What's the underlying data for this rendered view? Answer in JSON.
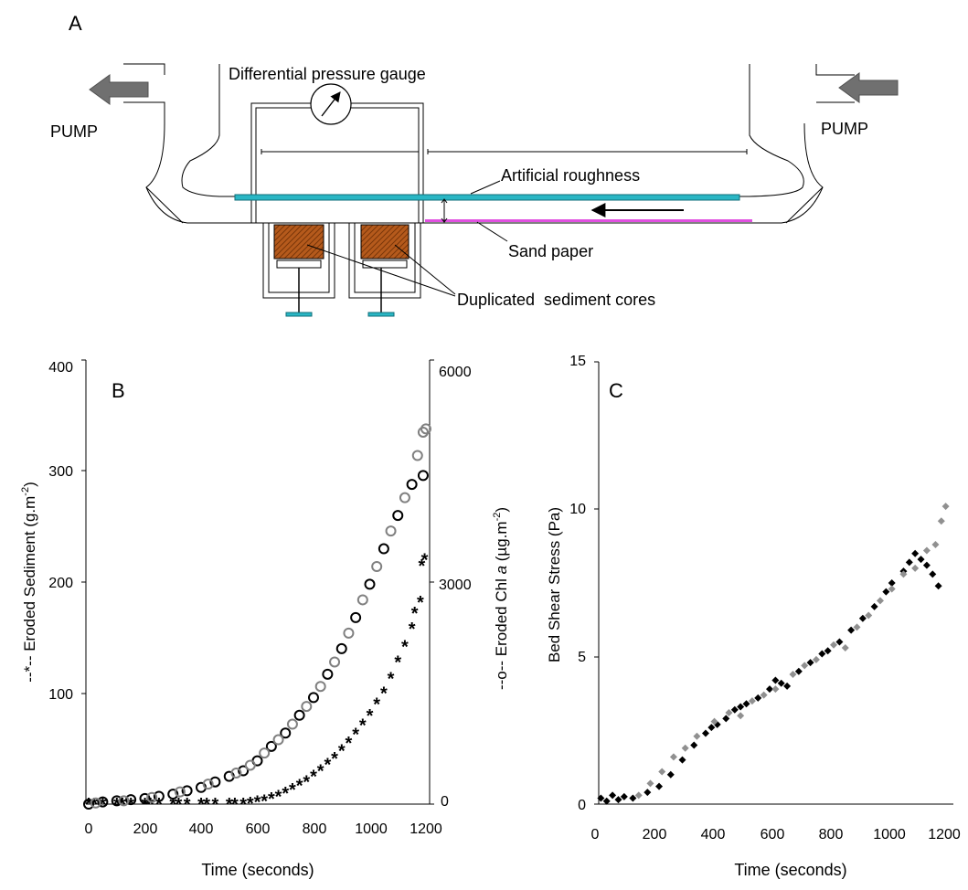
{
  "diagram": {
    "panel_letter": "A",
    "pump_left": "PUMP",
    "pump_right": "PUMP",
    "gauge_label": "Differential pressure gauge",
    "roughness_label": "Artificial roughness",
    "sandpaper_label": "Sand paper",
    "cores_label": "Duplicated  sediment cores",
    "colors": {
      "roughness": "#2ab6c4",
      "sandpaper": "#e050e0",
      "sediment": "#b55a1c",
      "arrow": "#707070"
    }
  },
  "panel_b": {
    "panel_letter": "B",
    "xlabel": "Time (seconds)",
    "ylabel_left_prefix": "--*-- Eroded Sediment (g.m",
    "ylabel_left_sup": "-2",
    "ylabel_left_suffix": ")",
    "ylabel_right_prefix": "--o-- Eroded Chl ",
    "ylabel_right_italic": "a",
    "ylabel_right_mid": " (µg.m",
    "ylabel_right_sup": "-2",
    "ylabel_right_suffix": ")",
    "x_ticks": [
      "0",
      "200",
      "400",
      "600",
      "800",
      "1000",
      "1200"
    ],
    "y_left_ticks": [
      "400",
      "300",
      "200",
      "100"
    ],
    "y_right_ticks": [
      "6000",
      "3000",
      "0"
    ]
  },
  "panel_c": {
    "panel_letter": "C",
    "xlabel": "Time (seconds)",
    "ylabel": "Bed Shear Stress (Pa)",
    "x_ticks": [
      "0",
      "200",
      "400",
      "600",
      "800",
      "1000",
      "1200"
    ],
    "y_ticks": [
      "15",
      "10",
      "5",
      "0"
    ]
  },
  "chart_data": [
    {
      "type": "scatter",
      "panel": "B",
      "xlim": [
        0,
        1200
      ],
      "ylim": [
        0,
        400
      ],
      "y2lim": [
        0,
        6000
      ],
      "series": [
        {
          "marker": "star",
          "axis": "left",
          "color": "#000000",
          "points": [
            [
              0,
              0
            ],
            [
              50,
              0
            ],
            [
              100,
              0
            ],
            [
              150,
              0
            ],
            [
              200,
              0
            ],
            [
              250,
              0
            ],
            [
              300,
              0
            ],
            [
              350,
              0
            ],
            [
              400,
              0
            ],
            [
              450,
              0
            ],
            [
              500,
              0
            ],
            [
              550,
              0
            ],
            [
              600,
              2
            ],
            [
              650,
              5
            ],
            [
              700,
              10
            ],
            [
              750,
              17
            ],
            [
              800,
              25
            ],
            [
              850,
              36
            ],
            [
              900,
              48
            ],
            [
              950,
              63
            ],
            [
              1000,
              80
            ],
            [
              1050,
              100
            ],
            [
              1100,
              128
            ],
            [
              1150,
              158
            ],
            [
              1180,
              182
            ]
          ]
        },
        {
          "marker": "star",
          "axis": "left",
          "color": "#808080",
          "points": [
            [
              20,
              0
            ],
            [
              120,
              0
            ],
            [
              220,
              0
            ],
            [
              320,
              0
            ],
            [
              420,
              0
            ],
            [
              520,
              0
            ],
            [
              575,
              1
            ],
            [
              625,
              3
            ],
            [
              675,
              7
            ],
            [
              725,
              13
            ],
            [
              775,
              20
            ],
            [
              825,
              30
            ],
            [
              875,
              41
            ],
            [
              925,
              55
            ],
            [
              975,
              71
            ],
            [
              1025,
              90
            ],
            [
              1075,
              113
            ],
            [
              1125,
              142
            ],
            [
              1160,
              172
            ],
            [
              1185,
              215
            ],
            [
              1195,
              220
            ]
          ]
        },
        {
          "marker": "circle",
          "axis": "right",
          "color": "#000000",
          "points": [
            [
              0,
              0
            ],
            [
              50,
              30
            ],
            [
              100,
              45
            ],
            [
              150,
              60
            ],
            [
              200,
              75
            ],
            [
              250,
              105
            ],
            [
              300,
              135
            ],
            [
              350,
              180
            ],
            [
              400,
              225
            ],
            [
              450,
              300
            ],
            [
              500,
              375
            ],
            [
              550,
              450
            ],
            [
              600,
              585
            ],
            [
              650,
              780
            ],
            [
              700,
              960
            ],
            [
              750,
              1200
            ],
            [
              800,
              1440
            ],
            [
              850,
              1755
            ],
            [
              900,
              2100
            ],
            [
              950,
              2520
            ],
            [
              1000,
              2970
            ],
            [
              1050,
              3450
            ],
            [
              1100,
              3900
            ],
            [
              1150,
              4320
            ],
            [
              1190,
              4440
            ]
          ]
        },
        {
          "marker": "circle",
          "axis": "right",
          "color": "#808080",
          "points": [
            [
              25,
              15
            ],
            [
              125,
              45
            ],
            [
              225,
              90
            ],
            [
              325,
              165
            ],
            [
              425,
              270
            ],
            [
              525,
              420
            ],
            [
              575,
              525
            ],
            [
              625,
              690
            ],
            [
              675,
              870
            ],
            [
              725,
              1080
            ],
            [
              775,
              1320
            ],
            [
              825,
              1590
            ],
            [
              875,
              1920
            ],
            [
              925,
              2310
            ],
            [
              975,
              2760
            ],
            [
              1025,
              3210
            ],
            [
              1075,
              3690
            ],
            [
              1125,
              4140
            ],
            [
              1170,
              4710
            ],
            [
              1190,
              5025
            ],
            [
              1200,
              5070
            ]
          ]
        }
      ]
    },
    {
      "type": "scatter",
      "panel": "C",
      "xlim": [
        0,
        1200
      ],
      "ylim": [
        0,
        15
      ],
      "series": [
        {
          "marker": "diamond",
          "color": "#000000",
          "points": [
            [
              20,
              0.2
            ],
            [
              40,
              0.1
            ],
            [
              60,
              0.3
            ],
            [
              80,
              0.15
            ],
            [
              100,
              0.25
            ],
            [
              130,
              0.2
            ],
            [
              180,
              0.4
            ],
            [
              220,
              0.6
            ],
            [
              260,
              1.0
            ],
            [
              300,
              1.5
            ],
            [
              340,
              2.0
            ],
            [
              380,
              2.4
            ],
            [
              400,
              2.6
            ],
            [
              420,
              2.7
            ],
            [
              450,
              2.9
            ],
            [
              480,
              3.2
            ],
            [
              500,
              3.3
            ],
            [
              520,
              3.4
            ],
            [
              560,
              3.6
            ],
            [
              600,
              3.9
            ],
            [
              620,
              4.2
            ],
            [
              640,
              4.1
            ],
            [
              660,
              4.0
            ],
            [
              700,
              4.5
            ],
            [
              740,
              4.8
            ],
            [
              780,
              5.1
            ],
            [
              800,
              5.2
            ],
            [
              840,
              5.5
            ],
            [
              880,
              5.9
            ],
            [
              920,
              6.3
            ],
            [
              960,
              6.7
            ],
            [
              1000,
              7.2
            ],
            [
              1020,
              7.5
            ],
            [
              1060,
              7.9
            ],
            [
              1080,
              8.2
            ],
            [
              1100,
              8.5
            ],
            [
              1120,
              8.3
            ],
            [
              1140,
              8.1
            ],
            [
              1160,
              7.8
            ],
            [
              1180,
              7.4
            ]
          ]
        },
        {
          "marker": "diamond",
          "color": "#909090",
          "points": [
            [
              150,
              0.3
            ],
            [
              190,
              0.7
            ],
            [
              230,
              1.1
            ],
            [
              270,
              1.6
            ],
            [
              310,
              1.9
            ],
            [
              350,
              2.3
            ],
            [
              410,
              2.8
            ],
            [
              460,
              3.1
            ],
            [
              500,
              3.0
            ],
            [
              540,
              3.5
            ],
            [
              580,
              3.7
            ],
            [
              620,
              3.9
            ],
            [
              680,
              4.4
            ],
            [
              720,
              4.7
            ],
            [
              760,
              4.9
            ],
            [
              820,
              5.4
            ],
            [
              860,
              5.3
            ],
            [
              900,
              6.0
            ],
            [
              940,
              6.4
            ],
            [
              980,
              6.9
            ],
            [
              1020,
              7.3
            ],
            [
              1060,
              7.8
            ],
            [
              1100,
              8.0
            ],
            [
              1140,
              8.6
            ],
            [
              1170,
              8.8
            ],
            [
              1190,
              9.6
            ],
            [
              1205,
              10.1
            ]
          ]
        }
      ]
    }
  ]
}
